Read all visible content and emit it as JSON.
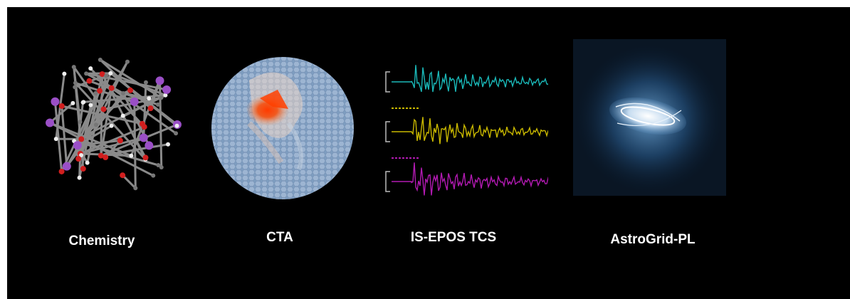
{
  "panels": [
    {
      "label": "Chemistry",
      "icon": "molecule-image"
    },
    {
      "label": "CTA",
      "icon": "camera-hexagon-map-image"
    },
    {
      "label": "IS-EPOS TCS",
      "icon": "seismogram-image"
    },
    {
      "label": "AstroGrid-PL",
      "icon": "galaxy-simulation-image"
    }
  ],
  "colors": {
    "background": "#000000",
    "label": "#ffffff",
    "waveforms": [
      "#1ab8b8",
      "#c9b800",
      "#b21ab2"
    ]
  }
}
